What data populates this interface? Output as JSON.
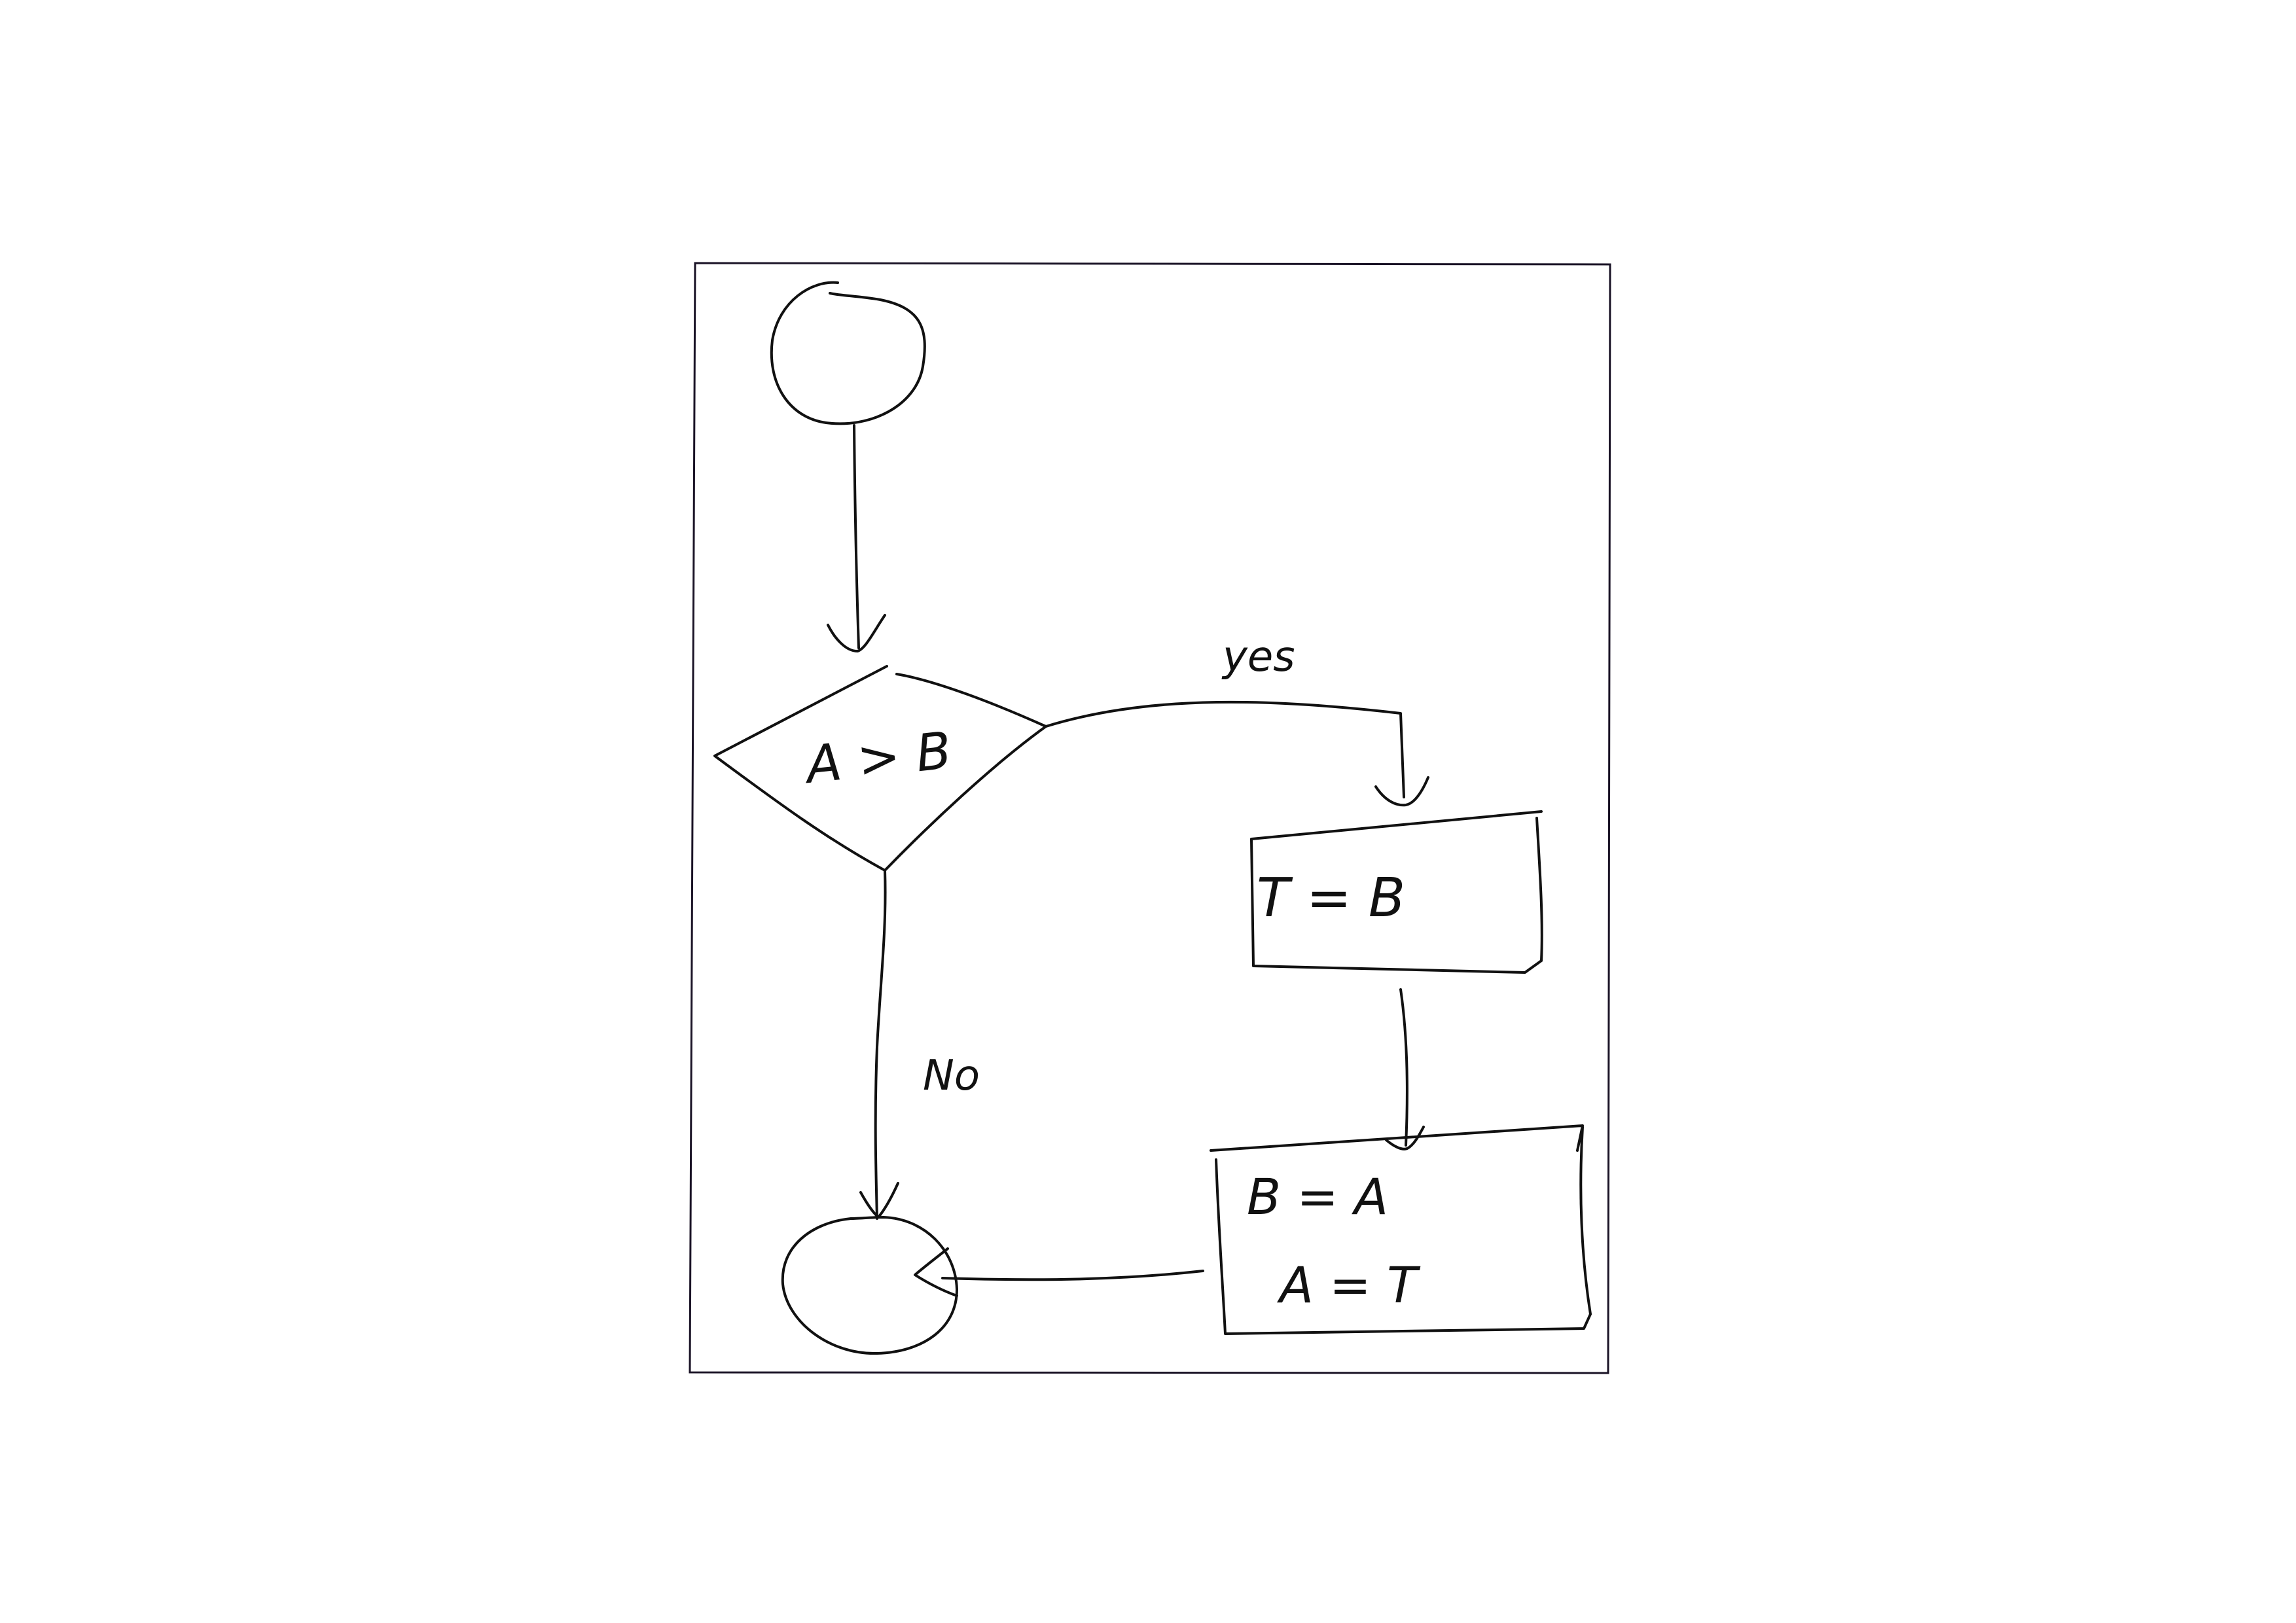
{
  "diagram": {
    "decision_label": "A > B",
    "yes_label": "yes",
    "no_label": "No",
    "process_1_label": "T = B",
    "process_2_line_1": "B = A",
    "process_2_line_2": "A = T"
  }
}
